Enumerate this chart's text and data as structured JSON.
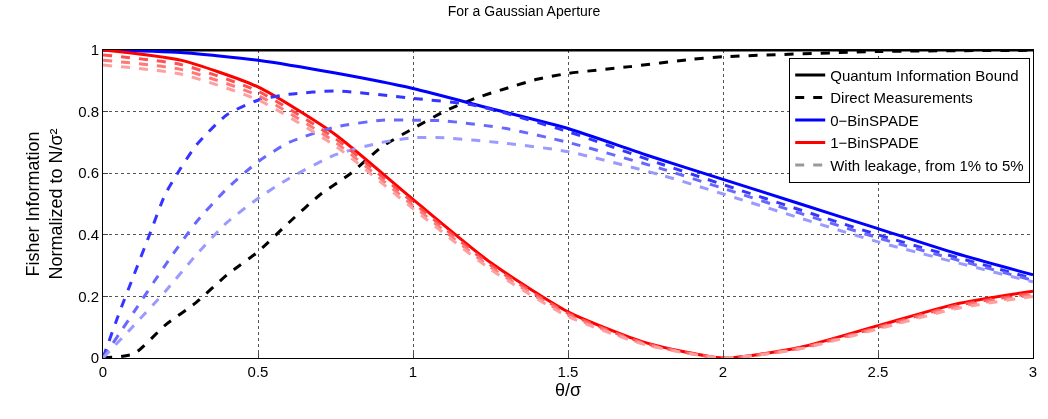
{
  "chart_data": {
    "type": "line",
    "title": "For a Gaussian Aperture",
    "xlabel": "θ/σ",
    "ylabel": "Fisher Information\nNormalized to N/σ²",
    "xlim": [
      0,
      3
    ],
    "xticks": [
      0,
      0.5,
      1,
      1.5,
      2,
      2.5,
      3
    ],
    "ylim": [
      0,
      1
    ],
    "yticks": [
      0,
      0.2,
      0.4,
      0.6,
      0.8,
      1
    ],
    "grid": true,
    "legend": "top right",
    "marker": "none",
    "series": [
      {
        "name": "Quantum Information Bound",
        "color": "#000000",
        "line_style": "solid",
        "x": [
          0,
          3
        ],
        "values": [
          1,
          1
        ]
      },
      {
        "name": "Direct Measurements",
        "color": "#000000",
        "line_style": "dashed",
        "x": [
          0,
          0.1,
          0.2,
          0.3,
          0.4,
          0.5,
          0.6,
          0.7,
          0.8,
          0.9,
          1,
          1.1,
          1.2,
          1.3,
          1.4,
          1.5,
          1.7,
          1.9,
          2,
          2.5,
          3
        ],
        "values": [
          0,
          0.014,
          0.106,
          0.18,
          0.27,
          0.345,
          0.44,
          0.53,
          0.6,
          0.686,
          0.745,
          0.8,
          0.843,
          0.875,
          0.905,
          0.924,
          0.946,
          0.97,
          0.978,
          0.995,
          0.999
        ]
      },
      {
        "name": "0−BinSPADE",
        "color": "#0000ff",
        "line_style": "solid",
        "x": [
          0,
          0.25,
          0.5,
          0.75,
          1,
          1.25,
          1.5,
          1.75,
          2,
          2.25,
          2.5,
          2.75,
          3
        ],
        "values": [
          1,
          0.992,
          0.967,
          0.925,
          0.875,
          0.81,
          0.745,
          0.66,
          0.58,
          0.5,
          0.42,
          0.34,
          0.27
        ]
      },
      {
        "name": "1−BinSPADE",
        "color": "#ff0000",
        "line_style": "solid",
        "x": [
          0,
          0.25,
          0.5,
          0.75,
          1,
          1.25,
          1.5,
          1.75,
          2,
          2.25,
          2.5,
          2.75,
          3
        ],
        "values": [
          1,
          0.967,
          0.88,
          0.725,
          0.515,
          0.31,
          0.15,
          0.05,
          0,
          0.035,
          0.105,
          0.175,
          0.217
        ]
      },
      {
        "name": "With leakage, from 1% to 5%",
        "color": "#999999",
        "line_style": "dashed",
        "values": [
          null
        ]
      },
      {
        "color": "#3535ff",
        "line_style": "dashed",
        "x": [
          0,
          0.05,
          0.1,
          0.15,
          0.2,
          0.25,
          0.3,
          0.4,
          0.5,
          0.6,
          0.75,
          1,
          1.2,
          1.5,
          1.8,
          2.5,
          3
        ],
        "values": [
          0,
          0.14,
          0.27,
          0.4,
          0.53,
          0.615,
          0.69,
          0.79,
          0.837,
          0.856,
          0.867,
          0.843,
          0.82,
          0.735,
          0.63,
          0.4,
          0.258
        ]
      },
      {
        "color": "#6868ff",
        "line_style": "dashed",
        "x": [
          0,
          0.1,
          0.2,
          0.3,
          0.4,
          0.5,
          0.6,
          0.75,
          0.9,
          1,
          1.1,
          1.3,
          1.5,
          1.8,
          2.5,
          3
        ],
        "values": [
          0,
          0.15,
          0.3,
          0.44,
          0.55,
          0.637,
          0.7,
          0.75,
          0.772,
          0.772,
          0.77,
          0.745,
          0.7,
          0.615,
          0.39,
          0.252
        ]
      },
      {
        "color": "#9a9aff",
        "line_style": "dashed",
        "x": [
          0,
          0.1,
          0.2,
          0.3,
          0.4,
          0.5,
          0.6,
          0.75,
          0.9,
          1,
          1.1,
          1.3,
          1.5,
          1.8,
          2.5,
          3
        ],
        "values": [
          0,
          0.106,
          0.215,
          0.334,
          0.44,
          0.518,
          0.583,
          0.66,
          0.7,
          0.715,
          0.715,
          0.697,
          0.67,
          0.594,
          0.377,
          0.247
        ]
      },
      {
        "color": "#ff5050",
        "line_style": "dashed",
        "x": [
          0,
          0.25,
          0.5,
          0.75,
          1,
          1.25,
          1.5,
          1.75,
          2,
          2.25,
          2.5,
          2.75,
          3
        ],
        "values": [
          0.984,
          0.953,
          0.866,
          0.712,
          0.505,
          0.302,
          0.145,
          0.047,
          0,
          0.033,
          0.1,
          0.17,
          0.21
        ]
      },
      {
        "color": "#ff7878",
        "line_style": "dashed",
        "x": [
          0,
          0.25,
          0.5,
          0.75,
          1,
          1.25,
          1.5,
          1.75,
          2,
          2.25,
          2.5,
          2.75,
          3
        ],
        "values": [
          0.967,
          0.937,
          0.852,
          0.7,
          0.495,
          0.295,
          0.14,
          0.045,
          0,
          0.031,
          0.097,
          0.165,
          0.205
        ]
      },
      {
        "color": "#ffa0a0",
        "line_style": "dashed",
        "x": [
          0,
          0.25,
          0.5,
          0.75,
          1,
          1.25,
          1.5,
          1.75,
          2,
          2.25,
          2.5,
          2.75,
          3
        ],
        "values": [
          0.951,
          0.922,
          0.838,
          0.688,
          0.485,
          0.288,
          0.135,
          0.043,
          0,
          0.03,
          0.094,
          0.16,
          0.2
        ]
      }
    ]
  }
}
